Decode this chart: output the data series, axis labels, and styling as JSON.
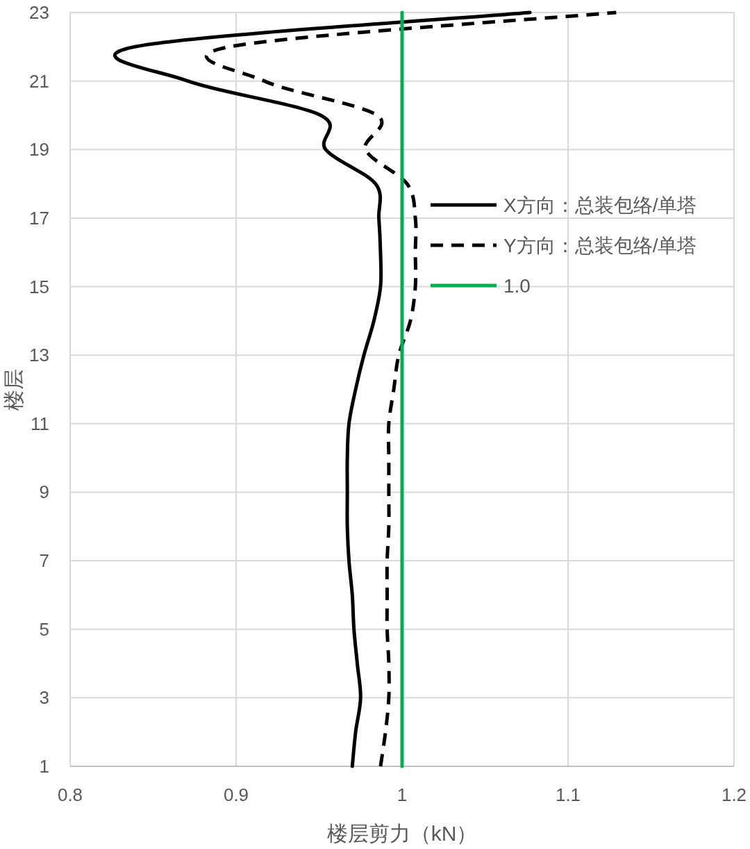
{
  "chart_data": {
    "type": "line",
    "xlabel": "楼层剪力（kN）",
    "ylabel": "楼层",
    "xlim": [
      0.8,
      1.2
    ],
    "xticks": [
      0.8,
      0.9,
      1,
      1.1,
      1.2
    ],
    "ylim": [
      1,
      23
    ],
    "yticks": [
      1,
      3,
      5,
      7,
      9,
      11,
      13,
      15,
      17,
      19,
      21,
      23
    ],
    "grid": true,
    "legend": "right",
    "series": [
      {
        "name": "X方向：总装包络/单塔",
        "color": "#000000",
        "line_style": "solid",
        "x": [
          0.97,
          0.972,
          0.975,
          0.973,
          0.971,
          0.97,
          0.968,
          0.967,
          0.967,
          0.967,
          0.968,
          0.972,
          0.977,
          0.983,
          0.987,
          0.987,
          0.986,
          0.984,
          0.954,
          0.951,
          0.871,
          0.839,
          1.077
        ],
        "values": [
          1,
          2,
          3,
          4,
          5,
          6,
          7,
          8,
          9,
          10,
          11,
          12,
          13,
          14,
          15,
          16,
          17,
          18,
          19,
          20,
          21,
          22,
          23
        ]
      },
      {
        "name": "Y方向：总装包络/单塔",
        "color": "#000000",
        "line_style": "dashed",
        "x": [
          0.987,
          0.99,
          0.992,
          0.992,
          0.991,
          0.991,
          0.991,
          0.992,
          0.992,
          0.992,
          0.992,
          0.995,
          0.998,
          1.005,
          1.008,
          1.008,
          1.008,
          1.003,
          0.978,
          0.985,
          0.917,
          0.896,
          1.129
        ],
        "values": [
          1,
          2,
          3,
          4,
          5,
          6,
          7,
          8,
          9,
          10,
          11,
          12,
          13,
          14,
          15,
          16,
          17,
          18,
          19,
          20,
          21,
          22,
          23
        ]
      },
      {
        "name": "1.0",
        "color": "#00b050",
        "line_style": "solid",
        "x": [
          1,
          1
        ],
        "values": [
          1,
          23
        ]
      }
    ]
  }
}
